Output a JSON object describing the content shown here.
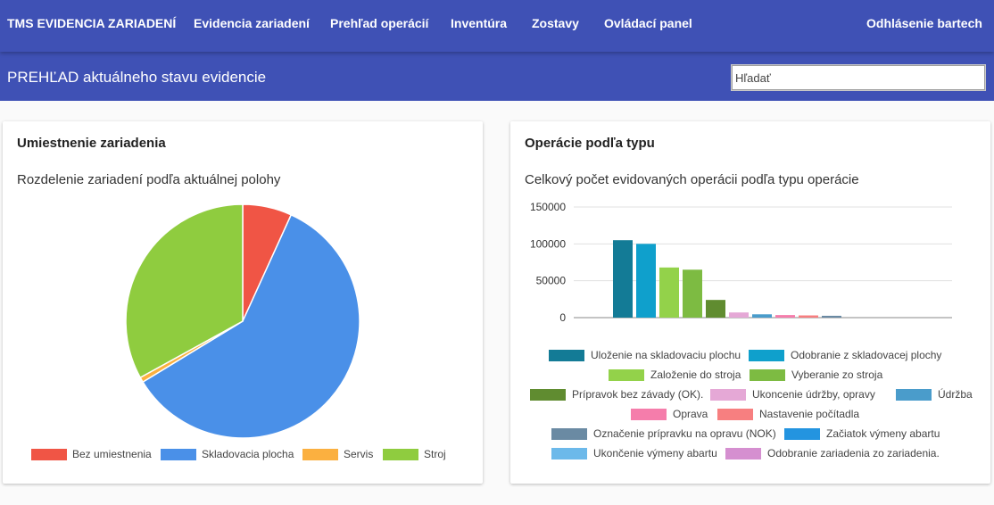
{
  "navbar": {
    "brand": "TMS EVIDENCIA ZARIADENÍ",
    "items": [
      {
        "label": "Evidencia zariadení"
      },
      {
        "label": "Prehľad operácií"
      },
      {
        "label": "Inventúra"
      },
      {
        "label": "Zostavy"
      },
      {
        "label": "Ovládací panel"
      }
    ],
    "logout": "Odhlásenie bartech"
  },
  "subheader": {
    "title": "PREHĽAD aktuálneho stavu evidencie",
    "search_placeholder": "Hľadať"
  },
  "card_left": {
    "title": "Umiestnenie zariadenia",
    "subtitle": "Rozdelenie zariadení podľa aktuálnej polohy"
  },
  "card_right": {
    "title": "Operácie podľa typu",
    "subtitle": "Celkový počet evidovaných operácii podľa typu operácie"
  },
  "chart_data": [
    {
      "type": "pie",
      "labels": [
        "Bez umiestnenia",
        "Skladovacia plocha",
        "Servis",
        "Stroj"
      ],
      "values": [
        6.8,
        59.5,
        0.7,
        33.0
      ],
      "colors": [
        "#f05545",
        "#4a90e8",
        "#fbb040",
        "#8fcc3f"
      ],
      "legend": "bottom"
    },
    {
      "type": "bar",
      "categories": [
        "Uloženie na skladovaciu plochu",
        "Odobranie z skladovacej plochy",
        "Založenie do stroja",
        "Vyberanie zo stroja",
        "Prípravok bez závady (OK).",
        "Ukoncenie údržby, opravy",
        "Údržba",
        "Oprava",
        "Nastavenie počítadla",
        "Označenie prípravku na opravu (NOK)",
        "Začiatok výmeny abartu",
        "Ukončenie výmeny abartu",
        "Odobranie zariadenia zo zariadenia."
      ],
      "values": [
        105000,
        100000,
        68000,
        65000,
        24000,
        7000,
        4500,
        3500,
        3000,
        2500,
        0,
        0,
        0
      ],
      "colors": [
        "#137b96",
        "#0fa0cc",
        "#93d24a",
        "#7dbb42",
        "#608c30",
        "#e5a8d6",
        "#4a9ccb",
        "#f57dab",
        "#f77f80",
        "#6a8aa3",
        "#2394e0",
        "#6cb9ea",
        "#d58fd0"
      ],
      "yticks": [
        0,
        50000,
        100000,
        150000
      ],
      "ylim": [
        0,
        150000
      ],
      "grid": true,
      "legend": "bottom"
    }
  ]
}
